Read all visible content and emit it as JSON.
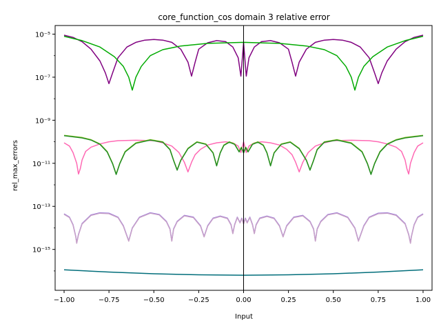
{
  "chart_data": {
    "type": "line",
    "title": "core_function_cos domain 3 relative error",
    "xlabel": "Input",
    "ylabel": "rel_max_errors",
    "xlim": [
      -1.05,
      1.05
    ],
    "ylog_range": [
      -16.9,
      -4.6
    ],
    "x_ticks": [
      -1.0,
      -0.75,
      -0.5,
      -0.25,
      0.0,
      0.25,
      0.5,
      0.75,
      1.0
    ],
    "x_tick_labels": [
      "−1.00",
      "−0.75",
      "−0.50",
      "−0.25",
      "0.00",
      "0.25",
      "0.50",
      "0.75",
      "1.00"
    ],
    "y_ticks_exp": [
      -15,
      -13,
      -11,
      -9,
      -7,
      -5
    ],
    "y_tick_labels": [
      "10⁻¹⁵",
      "10⁻¹³",
      "10⁻¹¹",
      "10⁻⁹",
      "10⁻⁷",
      "10⁻⁵"
    ],
    "vertical_line_x": 0.0,
    "grid": false,
    "series": [
      {
        "color": "#800080",
        "log10_x": [
          -1.0,
          -0.95,
          -0.9,
          -0.85,
          -0.8,
          -0.77,
          -0.75,
          -0.73,
          -0.7,
          -0.65,
          -0.6,
          -0.55,
          -0.5,
          -0.45,
          -0.4,
          -0.35,
          -0.31,
          -0.29,
          -0.27,
          -0.25,
          -0.2,
          -0.15,
          -0.1,
          -0.06,
          -0.03,
          -0.015,
          0.0,
          0.015,
          0.03,
          0.06,
          0.1,
          0.15,
          0.2,
          0.25,
          0.27,
          0.29,
          0.31,
          0.35,
          0.4,
          0.45,
          0.5,
          0.55,
          0.6,
          0.65,
          0.7,
          0.73,
          0.75,
          0.77,
          0.8,
          0.85,
          0.9,
          0.95,
          1.0
        ],
        "log10_y": [
          -5.05,
          -5.15,
          -5.35,
          -5.7,
          -6.25,
          -6.8,
          -7.3,
          -6.8,
          -6.1,
          -5.6,
          -5.38,
          -5.28,
          -5.25,
          -5.28,
          -5.38,
          -5.7,
          -6.3,
          -6.95,
          -6.3,
          -5.7,
          -5.4,
          -5.3,
          -5.35,
          -5.6,
          -6.1,
          -6.95,
          -5.4,
          -6.95,
          -6.1,
          -5.6,
          -5.35,
          -5.3,
          -5.4,
          -5.7,
          -6.3,
          -6.95,
          -6.3,
          -5.7,
          -5.38,
          -5.28,
          -5.25,
          -5.28,
          -5.38,
          -5.6,
          -6.1,
          -6.8,
          -7.3,
          -6.8,
          -6.25,
          -5.7,
          -5.35,
          -5.15,
          -5.05
        ]
      },
      {
        "color": "#00aa00",
        "log10_x": [
          -1.0,
          -0.9,
          -0.8,
          -0.72,
          -0.67,
          -0.64,
          -0.62,
          -0.6,
          -0.57,
          -0.52,
          -0.45,
          -0.35,
          -0.2,
          0.0,
          0.2,
          0.35,
          0.45,
          0.52,
          0.57,
          0.6,
          0.62,
          0.64,
          0.67,
          0.72,
          0.8,
          0.9,
          1.0
        ],
        "log10_y": [
          -5.1,
          -5.3,
          -5.6,
          -6.05,
          -6.5,
          -7.0,
          -7.6,
          -7.0,
          -6.5,
          -6.0,
          -5.72,
          -5.55,
          -5.43,
          -5.38,
          -5.43,
          -5.55,
          -5.72,
          -6.0,
          -6.5,
          -7.0,
          -7.6,
          -7.0,
          -6.5,
          -6.05,
          -5.6,
          -5.3,
          -5.1
        ]
      },
      {
        "color": "#ff69b4",
        "log10_x": [
          -1.0,
          -0.97,
          -0.95,
          -0.93,
          -0.92,
          -0.91,
          -0.9,
          -0.88,
          -0.85,
          -0.8,
          -0.75,
          -0.7,
          -0.6,
          -0.5,
          -0.45,
          -0.4,
          -0.36,
          -0.33,
          -0.31,
          -0.29,
          -0.27,
          -0.24,
          -0.2,
          -0.15,
          -0.1,
          -0.06,
          -0.03,
          -0.015,
          0.0,
          0.015,
          0.03,
          0.06,
          0.1,
          0.15,
          0.2,
          0.24,
          0.27,
          0.29,
          0.31,
          0.33,
          0.36,
          0.4,
          0.45,
          0.5,
          0.6,
          0.7,
          0.75,
          0.8,
          0.85,
          0.88,
          0.9,
          0.91,
          0.92,
          0.93,
          0.95,
          0.97,
          1.0
        ],
        "log10_y": [
          -10.05,
          -10.2,
          -10.5,
          -11.0,
          -11.5,
          -11.25,
          -10.85,
          -10.45,
          -10.25,
          -10.1,
          -10.0,
          -9.95,
          -9.93,
          -9.95,
          -10.05,
          -10.2,
          -10.5,
          -10.95,
          -11.4,
          -10.95,
          -10.6,
          -10.35,
          -10.15,
          -10.05,
          -10.0,
          -10.05,
          -10.2,
          -10.5,
          -10.0,
          -10.5,
          -10.2,
          -10.05,
          -10.0,
          -10.05,
          -10.15,
          -10.35,
          -10.6,
          -10.95,
          -11.4,
          -10.95,
          -10.5,
          -10.2,
          -10.05,
          -9.95,
          -9.93,
          -9.95,
          -10.0,
          -10.1,
          -10.25,
          -10.45,
          -10.85,
          -11.25,
          -11.5,
          -11.0,
          -10.5,
          -10.2,
          -10.05
        ]
      },
      {
        "color": "#9acd32",
        "log10_x": [
          -1.0,
          -0.95,
          -0.9,
          -0.85,
          -0.8,
          -0.76,
          -0.73,
          -0.71,
          -0.69,
          -0.66,
          -0.6,
          -0.52,
          -0.45,
          -0.41,
          -0.39,
          -0.37,
          -0.35,
          -0.31,
          -0.26,
          -0.21,
          -0.17,
          -0.15,
          -0.13,
          -0.11,
          -0.08,
          -0.05,
          -0.025,
          -0.012,
          0.0,
          0.012,
          0.025,
          0.05,
          0.08,
          0.11,
          0.13,
          0.15,
          0.17,
          0.21,
          0.26,
          0.31,
          0.35,
          0.37,
          0.39,
          0.41,
          0.45,
          0.52,
          0.6,
          0.66,
          0.69,
          0.71,
          0.73,
          0.76,
          0.8,
          0.85,
          0.9,
          0.95,
          1.0
        ],
        "log10_y": [
          -9.7,
          -9.75,
          -9.8,
          -9.9,
          -10.1,
          -10.45,
          -11.0,
          -11.5,
          -11.0,
          -10.45,
          -10.05,
          -9.9,
          -10.0,
          -10.35,
          -10.85,
          -11.3,
          -10.85,
          -10.3,
          -10.0,
          -10.1,
          -10.5,
          -11.1,
          -10.5,
          -10.15,
          -10.0,
          -10.1,
          -10.45,
          -10.25,
          -10.5,
          -10.25,
          -10.45,
          -10.1,
          -10.0,
          -10.15,
          -10.5,
          -11.1,
          -10.5,
          -10.1,
          -10.0,
          -10.3,
          -10.85,
          -11.3,
          -10.85,
          -10.35,
          -10.0,
          -9.9,
          -10.05,
          -10.45,
          -11.0,
          -11.5,
          -11.0,
          -10.45,
          -10.1,
          -9.9,
          -9.8,
          -9.75,
          -9.7
        ]
      },
      {
        "color": "#228b22",
        "log10_x": [
          -1.0,
          -0.95,
          -0.9,
          -0.85,
          -0.8,
          -0.76,
          -0.73,
          -0.71,
          -0.69,
          -0.66,
          -0.6,
          -0.52,
          -0.45,
          -0.41,
          -0.39,
          -0.37,
          -0.35,
          -0.31,
          -0.26,
          -0.21,
          -0.17,
          -0.15,
          -0.13,
          -0.11,
          -0.08,
          -0.05,
          -0.025,
          -0.012,
          0.0,
          0.012,
          0.025,
          0.05,
          0.08,
          0.11,
          0.13,
          0.15,
          0.17,
          0.21,
          0.26,
          0.31,
          0.35,
          0.37,
          0.39,
          0.41,
          0.45,
          0.52,
          0.6,
          0.66,
          0.69,
          0.71,
          0.73,
          0.76,
          0.8,
          0.85,
          0.9,
          0.95,
          1.0
        ],
        "log10_y": [
          -9.72,
          -9.77,
          -9.82,
          -9.92,
          -10.12,
          -10.47,
          -11.02,
          -11.52,
          -11.02,
          -10.47,
          -10.07,
          -9.92,
          -10.02,
          -10.37,
          -10.87,
          -11.32,
          -10.87,
          -10.32,
          -10.02,
          -10.12,
          -10.52,
          -11.12,
          -10.52,
          -10.17,
          -10.02,
          -10.12,
          -10.47,
          -10.27,
          -10.52,
          -10.27,
          -10.47,
          -10.12,
          -10.02,
          -10.17,
          -10.52,
          -11.12,
          -10.52,
          -10.12,
          -10.02,
          -10.32,
          -10.87,
          -11.32,
          -10.87,
          -10.37,
          -10.02,
          -9.92,
          -10.07,
          -10.47,
          -11.02,
          -11.52,
          -11.02,
          -10.47,
          -10.12,
          -9.92,
          -9.82,
          -9.77,
          -9.72
        ]
      },
      {
        "color": "#9370db",
        "log10_x": [
          -1.0,
          -0.97,
          -0.95,
          -0.935,
          -0.93,
          -0.92,
          -0.9,
          -0.85,
          -0.8,
          -0.75,
          -0.7,
          -0.67,
          -0.655,
          -0.64,
          -0.62,
          -0.58,
          -0.52,
          -0.47,
          -0.43,
          -0.41,
          -0.4,
          -0.39,
          -0.37,
          -0.33,
          -0.28,
          -0.24,
          -0.22,
          -0.2,
          -0.17,
          -0.13,
          -0.09,
          -0.07,
          -0.06,
          -0.05,
          -0.035,
          -0.02,
          -0.01,
          0.0,
          0.01,
          0.02,
          0.035,
          0.05,
          0.06,
          0.07,
          0.09,
          0.13,
          0.17,
          0.2,
          0.22,
          0.24,
          0.28,
          0.33,
          0.37,
          0.39,
          0.4,
          0.41,
          0.43,
          0.47,
          0.52,
          0.58,
          0.62,
          0.64,
          0.655,
          0.67,
          0.7,
          0.75,
          0.8,
          0.85,
          0.9,
          0.92,
          0.93,
          0.935,
          0.95,
          0.97,
          1.0
        ],
        "log10_y": [
          -13.35,
          -13.5,
          -13.85,
          -14.4,
          -14.7,
          -14.3,
          -13.8,
          -13.4,
          -13.3,
          -13.32,
          -13.5,
          -13.9,
          -14.25,
          -14.6,
          -14.0,
          -13.5,
          -13.3,
          -13.38,
          -13.7,
          -14.05,
          -14.6,
          -14.05,
          -13.7,
          -13.42,
          -13.5,
          -13.9,
          -14.4,
          -13.9,
          -13.55,
          -13.45,
          -13.55,
          -13.85,
          -14.25,
          -13.85,
          -13.5,
          -13.75,
          -13.55,
          -13.8,
          -13.55,
          -13.75,
          -13.5,
          -13.85,
          -14.25,
          -13.85,
          -13.55,
          -13.45,
          -13.55,
          -13.9,
          -14.4,
          -13.9,
          -13.5,
          -13.42,
          -13.7,
          -14.05,
          -14.6,
          -14.05,
          -13.7,
          -13.38,
          -13.3,
          -13.5,
          -14.0,
          -14.6,
          -14.25,
          -13.9,
          -13.5,
          -13.32,
          -13.3,
          -13.4,
          -13.8,
          -14.3,
          -14.7,
          -14.4,
          -13.85,
          -13.5,
          -13.35
        ]
      },
      {
        "color": "#c8a2c8",
        "log10_x": [
          -1.0,
          -0.97,
          -0.95,
          -0.935,
          -0.93,
          -0.92,
          -0.9,
          -0.85,
          -0.8,
          -0.75,
          -0.7,
          -0.67,
          -0.655,
          -0.64,
          -0.62,
          -0.58,
          -0.52,
          -0.47,
          -0.43,
          -0.41,
          -0.4,
          -0.39,
          -0.37,
          -0.33,
          -0.28,
          -0.24,
          -0.22,
          -0.2,
          -0.17,
          -0.13,
          -0.09,
          -0.07,
          -0.06,
          -0.05,
          -0.035,
          -0.02,
          -0.01,
          0.0,
          0.01,
          0.02,
          0.035,
          0.05,
          0.06,
          0.07,
          0.09,
          0.13,
          0.17,
          0.2,
          0.22,
          0.24,
          0.28,
          0.33,
          0.37,
          0.39,
          0.4,
          0.41,
          0.43,
          0.47,
          0.52,
          0.58,
          0.62,
          0.64,
          0.655,
          0.67,
          0.7,
          0.75,
          0.8,
          0.85,
          0.9,
          0.92,
          0.93,
          0.935,
          0.95,
          0.97,
          1.0
        ],
        "log10_y": [
          -13.37,
          -13.52,
          -13.87,
          -14.42,
          -14.72,
          -14.32,
          -13.82,
          -13.42,
          -13.32,
          -13.34,
          -13.52,
          -13.92,
          -14.27,
          -14.62,
          -14.02,
          -13.52,
          -13.32,
          -13.4,
          -13.72,
          -14.07,
          -14.62,
          -14.07,
          -13.72,
          -13.44,
          -13.52,
          -13.92,
          -14.42,
          -13.92,
          -13.57,
          -13.47,
          -13.57,
          -13.87,
          -14.27,
          -13.87,
          -13.52,
          -13.77,
          -13.57,
          -13.82,
          -13.57,
          -13.77,
          -13.52,
          -13.87,
          -14.27,
          -13.87,
          -13.57,
          -13.47,
          -13.57,
          -13.92,
          -14.42,
          -13.92,
          -13.52,
          -13.44,
          -13.72,
          -14.07,
          -14.62,
          -14.07,
          -13.72,
          -13.4,
          -13.32,
          -13.52,
          -14.02,
          -14.62,
          -14.27,
          -13.92,
          -13.52,
          -13.34,
          -13.32,
          -13.42,
          -13.82,
          -14.32,
          -14.72,
          -14.42,
          -13.87,
          -13.52,
          -13.37
        ]
      },
      {
        "color": "#006d7a",
        "log10_x": [
          -1.0,
          -0.75,
          -0.5,
          -0.25,
          0.0,
          0.25,
          0.5,
          0.75,
          1.0
        ],
        "log10_y": [
          -15.95,
          -16.05,
          -16.13,
          -16.18,
          -16.2,
          -16.18,
          -16.13,
          -16.05,
          -15.95
        ]
      }
    ]
  }
}
